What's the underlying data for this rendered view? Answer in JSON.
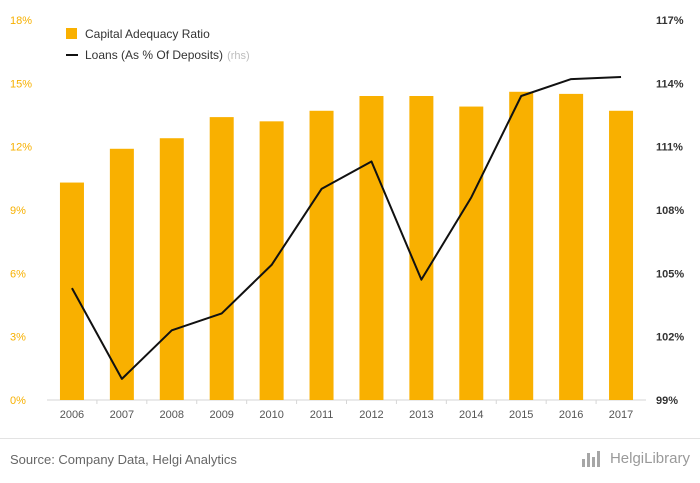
{
  "chart_data": {
    "type": "bar",
    "categories": [
      "2006",
      "2007",
      "2008",
      "2009",
      "2010",
      "2011",
      "2012",
      "2013",
      "2014",
      "2015",
      "2016",
      "2017"
    ],
    "series": [
      {
        "name": "Capital Adequacy Ratio",
        "type": "bar",
        "axis": "left",
        "values": [
          10.3,
          11.9,
          12.4,
          13.4,
          13.2,
          13.7,
          14.4,
          14.4,
          13.9,
          14.6,
          14.5,
          13.7
        ]
      },
      {
        "name": "Loans (As % Of Deposits)",
        "type": "line",
        "axis": "right",
        "values": [
          104.3,
          100.0,
          102.3,
          103.1,
          105.4,
          109.0,
          110.3,
          104.7,
          108.6,
          113.4,
          114.2,
          114.3
        ]
      }
    ],
    "left_axis": {
      "ylim": [
        0,
        18
      ],
      "ticks": [
        0,
        3,
        6,
        9,
        12,
        15,
        18
      ],
      "tick_labels": [
        "0%",
        "3%",
        "6%",
        "9%",
        "12%",
        "15%",
        "18%"
      ]
    },
    "right_axis": {
      "ylim": [
        99,
        117
      ],
      "ticks": [
        99,
        102,
        105,
        108,
        111,
        114,
        117
      ],
      "tick_labels": [
        "99%",
        "102%",
        "105%",
        "108%",
        "111%",
        "114%",
        "117%"
      ]
    },
    "legend": {
      "placement": "top-left",
      "note": "(rhs)"
    },
    "colors": {
      "bar": "#f9b000",
      "line": "#111111"
    },
    "grid": false
  },
  "footer": {
    "source": "Source: Company Data, Helgi Analytics",
    "brand": "HelgiLibrary"
  }
}
